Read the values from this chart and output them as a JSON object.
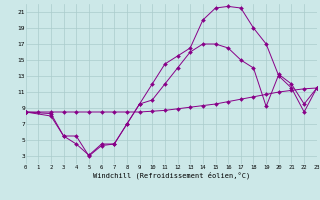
{
  "xlabel": "Windchill (Refroidissement éolien,°C)",
  "xlim": [
    0,
    23
  ],
  "ylim": [
    2,
    22
  ],
  "xticks": [
    0,
    1,
    2,
    3,
    4,
    5,
    6,
    7,
    8,
    9,
    10,
    11,
    12,
    13,
    14,
    15,
    16,
    17,
    18,
    19,
    20,
    21,
    22,
    23
  ],
  "yticks": [
    3,
    5,
    7,
    9,
    11,
    13,
    15,
    17,
    19,
    21
  ],
  "bg_color": "#cce8e8",
  "grid_color": "#aacccc",
  "line_color": "#880088",
  "line1_x": [
    0,
    1,
    2,
    3,
    4,
    5,
    6,
    7,
    8,
    9,
    10,
    11,
    12,
    13,
    14,
    15,
    16,
    17,
    18,
    19,
    20,
    21,
    22,
    23
  ],
  "line1_y": [
    8.5,
    8.5,
    8.5,
    8.5,
    8.5,
    8.5,
    8.5,
    8.5,
    8.5,
    8.5,
    8.6,
    8.7,
    8.9,
    9.1,
    9.3,
    9.5,
    9.8,
    10.1,
    10.4,
    10.7,
    11.0,
    11.2,
    11.4,
    11.5
  ],
  "line2_x": [
    0,
    2,
    3,
    4,
    5,
    6,
    7,
    8,
    9,
    10,
    11,
    12,
    13,
    14,
    15,
    16,
    17,
    18,
    19,
    20,
    21,
    22,
    23
  ],
  "line2_y": [
    8.5,
    8.3,
    5.5,
    4.5,
    3.1,
    4.5,
    4.5,
    7.0,
    9.5,
    12.0,
    14.5,
    15.5,
    16.5,
    20.0,
    21.5,
    21.7,
    21.5,
    19.0,
    17.0,
    13.0,
    11.5,
    8.5,
    11.5
  ],
  "line3_x": [
    0,
    2,
    3,
    4,
    5,
    6,
    7,
    8,
    9,
    10,
    11,
    12,
    13,
    14,
    15,
    16,
    17,
    18,
    19,
    20,
    21,
    22,
    23
  ],
  "line3_y": [
    8.5,
    8.0,
    5.5,
    5.5,
    3.0,
    4.3,
    4.5,
    7.0,
    9.5,
    10.0,
    12.0,
    14.0,
    16.0,
    17.0,
    17.0,
    16.5,
    15.0,
    14.0,
    9.2,
    13.2,
    12.0,
    9.5,
    11.5
  ]
}
